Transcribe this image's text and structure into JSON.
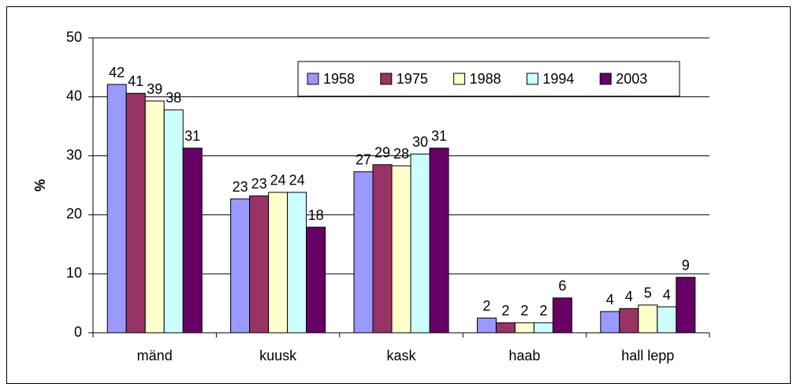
{
  "chart_data": {
    "type": "bar",
    "ylabel": "%",
    "categories": [
      "mänd",
      "kuusk",
      "kask",
      "haab",
      "hall lepp"
    ],
    "series": [
      {
        "name": "1958",
        "color": "#9999ff",
        "values": [
          42.1,
          22.7,
          27.3,
          2.5,
          3.6
        ],
        "value_labels": [
          "42",
          "23",
          "27",
          "2",
          "4"
        ]
      },
      {
        "name": "1975",
        "color": "#993366",
        "values": [
          40.6,
          23.2,
          28.5,
          1.7,
          4.1
        ],
        "value_labels": [
          "41",
          "23",
          "29",
          "2",
          "4"
        ]
      },
      {
        "name": "1988",
        "color": "#ffffcc",
        "values": [
          39.3,
          23.8,
          28.3,
          1.7,
          4.7
        ],
        "value_labels": [
          "39",
          "24",
          "28",
          "2",
          "5"
        ]
      },
      {
        "name": "1994",
        "color": "#ccffff",
        "values": [
          37.8,
          23.8,
          30.3,
          1.7,
          4.4
        ],
        "value_labels": [
          "38",
          "24",
          "30",
          "2",
          "4"
        ]
      },
      {
        "name": "2003",
        "color": "#660066",
        "values": [
          31.3,
          17.9,
          31.3,
          5.9,
          9.4
        ],
        "value_labels": [
          "31",
          "18",
          "31",
          "6",
          "9"
        ]
      }
    ],
    "ylim": [
      0,
      50
    ],
    "yticks": [
      0,
      10,
      20,
      30,
      40,
      50
    ],
    "grid": true,
    "legend": "top-right"
  }
}
